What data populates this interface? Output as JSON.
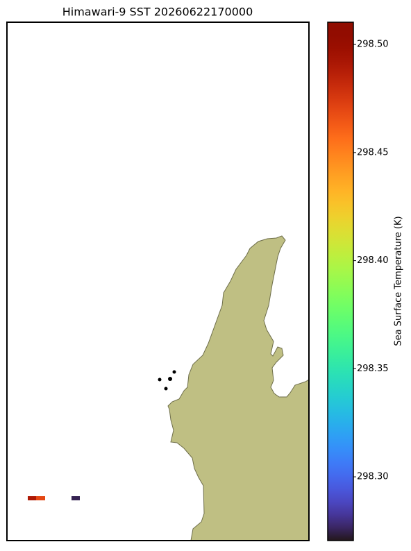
{
  "chart_data": {
    "type": "map",
    "title": "Himawari-9 SST 20260622170000",
    "colorbar": {
      "label": "Sea Surface Temperature (K)",
      "lim": [
        298.2705,
        298.5103
      ],
      "ticks": [
        {
          "value": 298.3,
          "label": "298.30"
        },
        {
          "value": 298.35,
          "label": "298.35"
        },
        {
          "value": 298.4,
          "label": "298.40"
        },
        {
          "value": 298.45,
          "label": "298.45"
        },
        {
          "value": 298.5,
          "label": "298.50"
        }
      ]
    },
    "values": [
      298.49,
      298.47,
      298.275
    ]
  }
}
